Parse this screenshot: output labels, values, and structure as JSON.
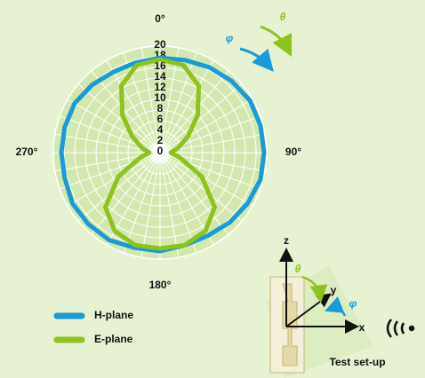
{
  "chart_data": {
    "type": "polar",
    "theta": [
      0,
      15,
      30,
      45,
      60,
      75,
      90,
      105,
      120,
      135,
      150,
      165,
      180,
      195,
      210,
      225,
      240,
      255,
      270,
      285,
      300,
      315,
      330,
      345
    ],
    "series": [
      {
        "name": "H-plane",
        "color": "#1a9ad6",
        "values": [
          17.8,
          18,
          18.5,
          19,
          19.5,
          19.5,
          19.5,
          19.5,
          19,
          18.5,
          18,
          18,
          18.5,
          18.5,
          19,
          19,
          19,
          18.5,
          18.5,
          18.5,
          18.5,
          18,
          17.5,
          17.5
        ]
      },
      {
        "name": "E-plane",
        "color": "#8dc21f",
        "values": [
          17.5,
          17,
          14.5,
          10,
          6,
          3.5,
          2,
          4,
          9,
          14.5,
          17,
          18,
          18,
          18,
          17,
          14.5,
          9,
          4,
          2,
          3.5,
          6,
          10,
          14.5,
          17
        ]
      }
    ],
    "rlim": [
      0,
      20
    ],
    "rticks": [
      0,
      2,
      4,
      6,
      8,
      10,
      12,
      14,
      16,
      18,
      20
    ],
    "thetaticks": [
      {
        "value": 0,
        "label": "0°"
      },
      {
        "value": 90,
        "label": "90°"
      },
      {
        "value": 180,
        "label": "180°"
      },
      {
        "value": 270,
        "label": "270°"
      }
    ],
    "annotations": [
      "φ",
      "θ",
      "z",
      "y",
      "x",
      "θ",
      "φ",
      "Test set-up"
    ]
  }
}
